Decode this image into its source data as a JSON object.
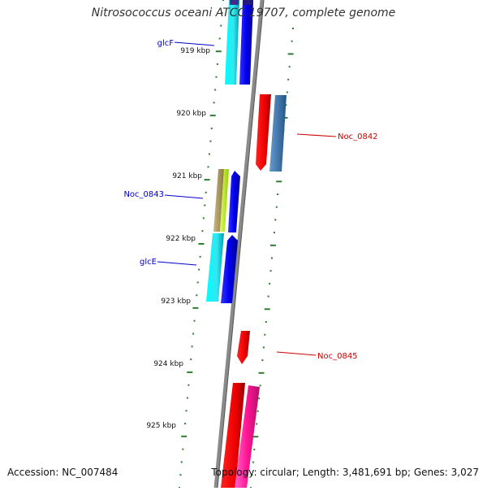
{
  "title": "Nitrosococcus oceani ATCC 19707, complete genome",
  "footer": {
    "accession": "Accession: NC_007484",
    "summary": "Topology: circular; Length: 3,481,691 bp; Genes: 3,027"
  },
  "ticks": [
    "919 kbp",
    "920 kbp",
    "921 kbp",
    "922 kbp",
    "923 kbp",
    "924 kbp",
    "925 kbp"
  ],
  "gene_labels": [
    {
      "text": "glcF",
      "color": "#0000cc"
    },
    {
      "text": "Noc_0842",
      "color": "#cc0000"
    },
    {
      "text": "Noc_0843",
      "color": "#0000cc"
    },
    {
      "text": "glcE",
      "color": "#0000cc"
    },
    {
      "text": "Noc_0845",
      "color": "#cc0000"
    }
  ],
  "colors": {
    "backbone": "#808080",
    "tick": "#2e7d32",
    "forward_label": "#0000cc",
    "reverse_label": "#cc0000"
  }
}
